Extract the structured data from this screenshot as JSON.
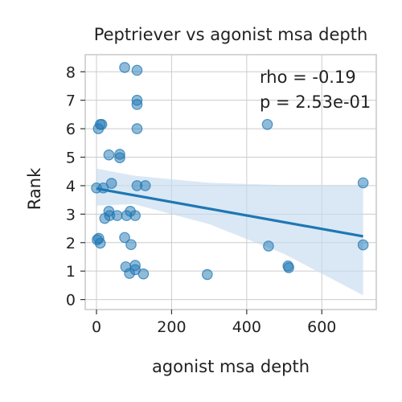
{
  "chart_data": {
    "type": "scatter",
    "title": "Peptriever vs agonist msa depth",
    "xlabel": "agonist msa depth",
    "ylabel": "Rank",
    "xlim": [
      -30,
      745
    ],
    "ylim": [
      -0.35,
      8.6
    ],
    "xticks": [
      0,
      200,
      400,
      600
    ],
    "yticks": [
      0,
      1,
      2,
      3,
      4,
      5,
      6,
      7,
      8
    ],
    "grid": true,
    "point_color": "#1f77b4",
    "band_color": "#c6dbef",
    "points": [
      {
        "x": 75,
        "y": 8.15
      },
      {
        "x": 108,
        "y": 8.05
      },
      {
        "x": 108,
        "y": 7.0
      },
      {
        "x": 108,
        "y": 6.85
      },
      {
        "x": 10,
        "y": 6.15
      },
      {
        "x": 14,
        "y": 6.15
      },
      {
        "x": 5,
        "y": 6.0
      },
      {
        "x": 108,
        "y": 6.0
      },
      {
        "x": 455,
        "y": 6.15
      },
      {
        "x": 33,
        "y": 5.08
      },
      {
        "x": 62,
        "y": 5.1
      },
      {
        "x": 62,
        "y": 4.98
      },
      {
        "x": 0,
        "y": 3.92
      },
      {
        "x": 18,
        "y": 3.92
      },
      {
        "x": 40,
        "y": 4.08
      },
      {
        "x": 108,
        "y": 4.0
      },
      {
        "x": 130,
        "y": 4.0
      },
      {
        "x": 710,
        "y": 4.1
      },
      {
        "x": 33,
        "y": 3.1
      },
      {
        "x": 22,
        "y": 2.85
      },
      {
        "x": 35,
        "y": 2.95
      },
      {
        "x": 55,
        "y": 2.95
      },
      {
        "x": 80,
        "y": 2.95
      },
      {
        "x": 90,
        "y": 3.1
      },
      {
        "x": 103,
        "y": 2.95
      },
      {
        "x": 2,
        "y": 2.1
      },
      {
        "x": 6,
        "y": 2.15
      },
      {
        "x": 10,
        "y": 1.98
      },
      {
        "x": 75,
        "y": 2.18
      },
      {
        "x": 92,
        "y": 1.93
      },
      {
        "x": 458,
        "y": 1.88
      },
      {
        "x": 710,
        "y": 1.92
      },
      {
        "x": 78,
        "y": 1.15
      },
      {
        "x": 103,
        "y": 1.2
      },
      {
        "x": 103,
        "y": 1.05
      },
      {
        "x": 88,
        "y": 0.92
      },
      {
        "x": 125,
        "y": 0.9
      },
      {
        "x": 295,
        "y": 0.88
      },
      {
        "x": 510,
        "y": 1.18
      },
      {
        "x": 512,
        "y": 1.12
      }
    ],
    "regression": {
      "x": [
        0,
        710
      ],
      "y": [
        3.9,
        2.22
      ],
      "ci_upper": [
        [
          0,
          4.6
        ],
        [
          100,
          4.35
        ],
        [
          300,
          4.1
        ],
        [
          500,
          4.02
        ],
        [
          710,
          4.02
        ]
      ],
      "ci_lower": [
        [
          0,
          3.3
        ],
        [
          100,
          3.35
        ],
        [
          300,
          2.65
        ],
        [
          500,
          1.6
        ],
        [
          710,
          0.15
        ]
      ]
    },
    "annotations": [
      "rho = -0.19",
      "p = 2.53e-01"
    ]
  }
}
